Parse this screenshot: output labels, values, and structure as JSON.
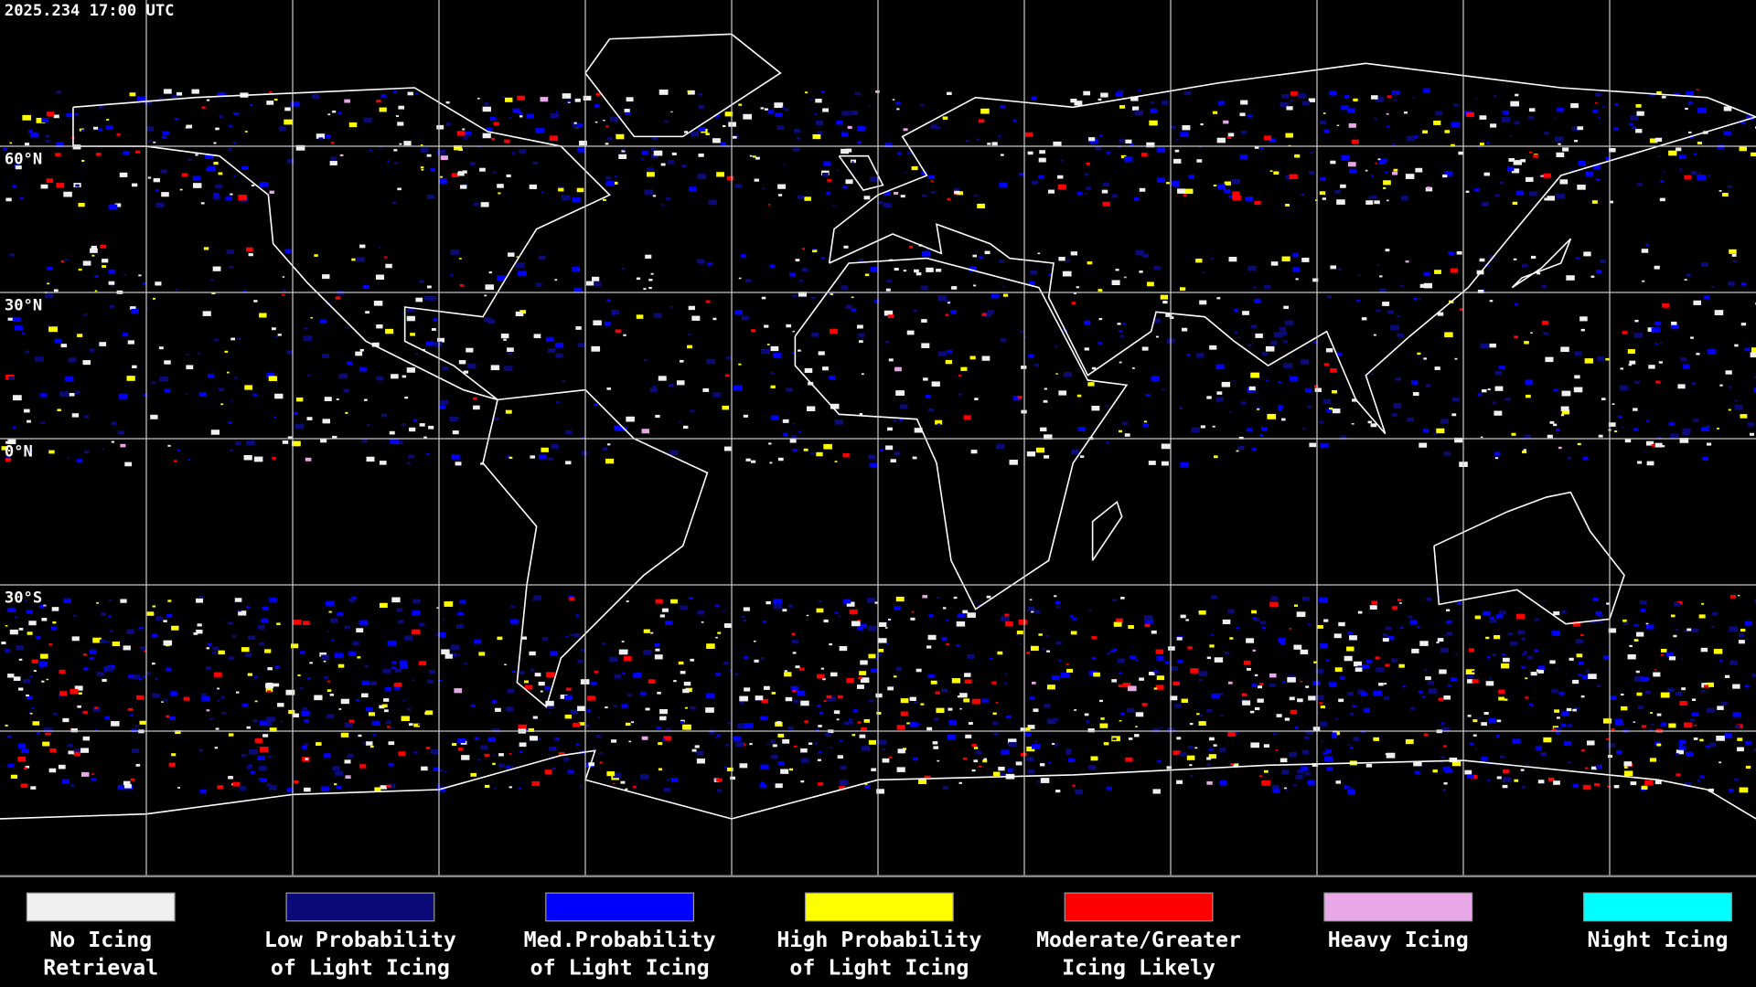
{
  "header": {
    "timestamp": "2025.234 17:00 UTC"
  },
  "map": {
    "latitude_labels": [
      "60°N",
      "30°N",
      "0°N",
      "30°S"
    ]
  },
  "legend": [
    {
      "color": "#f0f0f0",
      "lines": [
        "No Icing",
        "Retrieval"
      ]
    },
    {
      "color": "#0a0a78",
      "lines": [
        "Low Probability",
        "of Light Icing"
      ]
    },
    {
      "color": "#0000ff",
      "lines": [
        "Med.Probability",
        "of Light Icing"
      ]
    },
    {
      "color": "#ffff00",
      "lines": [
        "High Probability",
        "of Light Icing"
      ]
    },
    {
      "color": "#ff0000",
      "lines": [
        "Moderate/Greater",
        "Icing Likely"
      ]
    },
    {
      "color": "#e8a8e8",
      "lines": [
        "Heavy Icing"
      ]
    },
    {
      "color": "#00ffff",
      "lines": [
        "Night Icing"
      ]
    }
  ]
}
